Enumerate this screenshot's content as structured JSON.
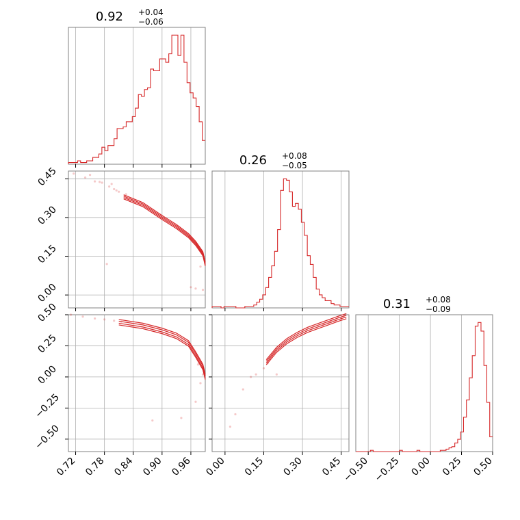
{
  "titles": {
    "p1": {
      "main": "0.92",
      "sup": "+0.04",
      "sub": "−0.06"
    },
    "p2": {
      "main": "0.26",
      "sup": "+0.08",
      "sub": "−0.05"
    },
    "p3": {
      "main": "0.31",
      "sup": "+0.08",
      "sub": "−0.09"
    }
  },
  "chart_data": {
    "type": "corner",
    "color": "#d62728",
    "grid_color": "#b0b0b0",
    "params": [
      {
        "range": [
          0.705,
          0.99
        ],
        "ticks": [
          0.72,
          0.78,
          0.84,
          0.9,
          0.96
        ],
        "tick_labels": [
          "0.72",
          "0.78",
          "0.84",
          "0.90",
          "0.96"
        ]
      },
      {
        "range": [
          -0.05,
          0.48
        ],
        "ticks": [
          0.0,
          0.15,
          0.3,
          0.45
        ],
        "tick_labels": [
          "0.00",
          "0.15",
          "0.30",
          "0.45"
        ]
      },
      {
        "range": [
          -0.6,
          0.5
        ],
        "ticks": [
          -0.5,
          -0.25,
          0.0,
          0.25,
          0.5
        ],
        "tick_labels": [
          "−0.50",
          "−0.25",
          "0.00",
          "0.25",
          "0.50"
        ]
      }
    ],
    "hist1": {
      "values": [
        1,
        1,
        1,
        2,
        1,
        1,
        2,
        2,
        4,
        4,
        6,
        10,
        8,
        11,
        11,
        15,
        21,
        21,
        22,
        25,
        25,
        28,
        33,
        41,
        40,
        44,
        45,
        56,
        55,
        55,
        62,
        62,
        60,
        65,
        76,
        76,
        64,
        76,
        60,
        48,
        42,
        39,
        34,
        25,
        14
      ]
    },
    "hist2": {
      "values": [
        1,
        1,
        1,
        0,
        1,
        1,
        1,
        1,
        0,
        0,
        0,
        1,
        1,
        1,
        2,
        4,
        6,
        9,
        14,
        21,
        29,
        39,
        54,
        81,
        89,
        88,
        80,
        70,
        72,
        68,
        59,
        50,
        36,
        30,
        21,
        13,
        9,
        7,
        5,
        5,
        3,
        2,
        2,
        1,
        1,
        1
      ]
    },
    "hist3": {
      "values": [
        0,
        0,
        0,
        0,
        0,
        1,
        0,
        0,
        0,
        0,
        0,
        0,
        0,
        0,
        0,
        1,
        0,
        0,
        0,
        0,
        0,
        1,
        0,
        0,
        0,
        0,
        0,
        0,
        0,
        1,
        1,
        2,
        3,
        4,
        7,
        10,
        16,
        28,
        42,
        60,
        78,
        102,
        105,
        98,
        70,
        40,
        12
      ]
    },
    "scatter_21": [
      [
        0.716,
        0.47
      ],
      [
        0.74,
        0.455
      ],
      [
        0.76,
        0.44
      ],
      [
        0.775,
        0.435
      ],
      [
        0.79,
        0.42
      ],
      [
        0.8,
        0.41
      ],
      [
        0.81,
        0.4
      ],
      [
        0.825,
        0.39
      ],
      [
        0.795,
        0.43
      ],
      [
        0.785,
        0.12
      ],
      [
        0.96,
        0.03
      ],
      [
        0.97,
        0.025
      ],
      [
        0.985,
        0.02
      ],
      [
        0.98,
        0.11
      ],
      [
        0.985,
        0.155
      ],
      [
        0.75,
        0.465
      ],
      [
        0.77,
        0.438
      ],
      [
        0.805,
        0.405
      ]
    ],
    "scatter_31": [
      [
        0.71,
        0.5
      ],
      [
        0.735,
        0.485
      ],
      [
        0.76,
        0.47
      ],
      [
        0.78,
        0.462
      ],
      [
        0.8,
        0.452
      ],
      [
        0.815,
        0.445
      ],
      [
        0.88,
        -0.35
      ],
      [
        0.94,
        -0.33
      ],
      [
        0.97,
        -0.2
      ],
      [
        0.98,
        -0.05
      ],
      [
        0.985,
        0.02
      ],
      [
        0.975,
        0.1
      ]
    ],
    "scatter_32": [
      [
        0.02,
        -0.4
      ],
      [
        0.04,
        -0.3
      ],
      [
        0.07,
        -0.1
      ],
      [
        0.1,
        0.0
      ],
      [
        0.12,
        0.02
      ],
      [
        0.15,
        0.07
      ],
      [
        0.165,
        0.11
      ],
      [
        0.2,
        0.02
      ],
      [
        0.38,
        0.42
      ],
      [
        0.4,
        0.44
      ],
      [
        0.42,
        0.46
      ],
      [
        0.44,
        0.48
      ],
      [
        0.46,
        0.49
      ],
      [
        0.45,
        0.47
      ],
      [
        0.43,
        0.45
      ],
      [
        0.41,
        0.44
      ]
    ],
    "curve_21": [
      [
        0.82,
        0.38
      ],
      [
        0.86,
        0.35
      ],
      [
        0.9,
        0.3
      ],
      [
        0.93,
        0.265
      ],
      [
        0.955,
        0.23
      ],
      [
        0.97,
        0.2
      ],
      [
        0.985,
        0.16
      ],
      [
        0.99,
        0.12
      ]
    ],
    "curve_31": [
      [
        0.81,
        0.44
      ],
      [
        0.86,
        0.41
      ],
      [
        0.9,
        0.37
      ],
      [
        0.93,
        0.33
      ],
      [
        0.955,
        0.27
      ],
      [
        0.97,
        0.18
      ],
      [
        0.985,
        0.08
      ],
      [
        0.99,
        0.0
      ]
    ],
    "curve_32": [
      [
        0.16,
        0.12
      ],
      [
        0.2,
        0.22
      ],
      [
        0.24,
        0.29
      ],
      [
        0.28,
        0.34
      ],
      [
        0.32,
        0.38
      ],
      [
        0.36,
        0.41
      ],
      [
        0.4,
        0.44
      ],
      [
        0.44,
        0.47
      ],
      [
        0.47,
        0.49
      ]
    ]
  }
}
